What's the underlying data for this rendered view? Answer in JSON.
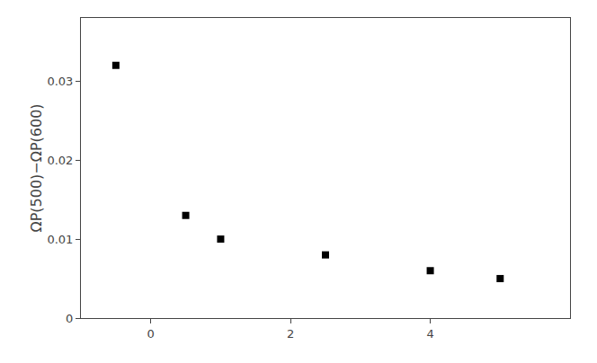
{
  "chart_data": {
    "type": "scatter",
    "ylabel": "ΩP(500)−ΩP(600)",
    "x": [
      -0.5,
      0.5,
      1.0,
      2.5,
      4.0,
      5.0
    ],
    "values": [
      0.032,
      0.013,
      0.01,
      0.008,
      0.006,
      0.005
    ],
    "marker": "square",
    "color": "black",
    "xlim": [
      -1.0,
      6.0
    ],
    "ylim": [
      0,
      0.038
    ],
    "xticks": [
      0,
      2,
      4
    ],
    "yticks": [
      0,
      0.01,
      0.02,
      0.03
    ],
    "grid": false
  }
}
